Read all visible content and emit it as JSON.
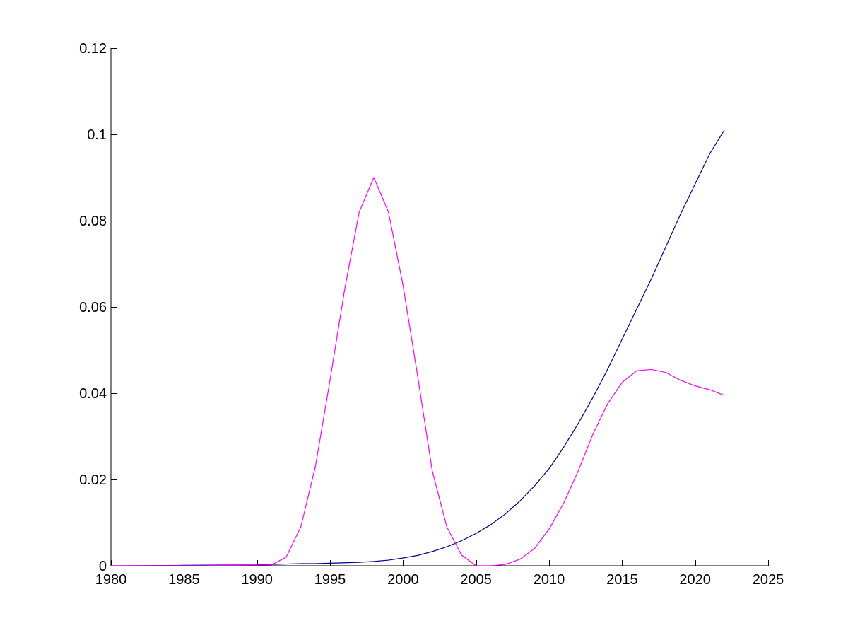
{
  "chart_data": {
    "type": "line",
    "title": "",
    "xlabel": "",
    "ylabel": "",
    "xlim": [
      1980,
      2025
    ],
    "ylim": [
      0,
      0.12
    ],
    "xticks": [
      1980,
      1985,
      1990,
      1995,
      2000,
      2005,
      2010,
      2015,
      2020,
      2025
    ],
    "yticks": [
      0,
      0.02,
      0.04,
      0.06,
      0.08,
      0.1,
      0.12
    ],
    "xtick_labels": [
      "1980",
      "1985",
      "1990",
      "1995",
      "2000",
      "2005",
      "2010",
      "2015",
      "2020",
      "2025"
    ],
    "ytick_labels": [
      "0",
      "0.02",
      "0.04",
      "0.06",
      "0.08",
      "0.1",
      "0.12"
    ],
    "grid": false,
    "legend": false,
    "series": [
      {
        "color": "#00008b",
        "x": [
          1980,
          1985,
          1990,
          1991,
          1992,
          1993,
          1994,
          1995,
          1996,
          1997,
          1998,
          1999,
          2000,
          2001,
          2002,
          2003,
          2004,
          2005,
          2006,
          2007,
          2008,
          2009,
          2010,
          2011,
          2012,
          2013,
          2014,
          2015,
          2016,
          2017,
          2018,
          2019,
          2020,
          2021,
          2022
        ],
        "y": [
          0,
          0.0001,
          0.0002,
          0.0003,
          0.0004,
          0.0005,
          0.0005,
          0.0006,
          0.0007,
          0.0008,
          0.001,
          0.0013,
          0.0018,
          0.0024,
          0.0033,
          0.0044,
          0.0058,
          0.0075,
          0.0095,
          0.012,
          0.015,
          0.0185,
          0.0225,
          0.0275,
          0.033,
          0.039,
          0.0455,
          0.0525,
          0.0595,
          0.0665,
          0.074,
          0.0815,
          0.0885,
          0.0955,
          0.101
        ]
      },
      {
        "color": "#ff00ff",
        "x": [
          1980,
          1986,
          1991,
          1992,
          1993,
          1994,
          1995,
          1996,
          1997,
          1998,
          1999,
          2000,
          2001,
          2002,
          2003,
          2004,
          2005,
          2006,
          2007,
          2008,
          2009,
          2010,
          2011,
          2012,
          2013,
          2014,
          2015,
          2016,
          2017,
          2018,
          2019,
          2020,
          2021,
          2022
        ],
        "y": [
          0,
          0,
          0.0002,
          0.002,
          0.009,
          0.023,
          0.043,
          0.064,
          0.082,
          0.09,
          0.082,
          0.065,
          0.044,
          0.022,
          0.009,
          0.0025,
          0,
          0,
          0.0003,
          0.0015,
          0.004,
          0.0085,
          0.0145,
          0.022,
          0.0305,
          0.0375,
          0.0425,
          0.0452,
          0.0455,
          0.0448,
          0.043,
          0.0417,
          0.0408,
          0.0395
        ]
      }
    ]
  }
}
